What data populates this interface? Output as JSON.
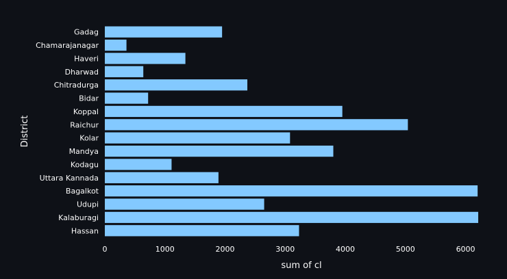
{
  "colors": {
    "background": "#0e1117",
    "bar": "#83c9ff",
    "text": "#fafafa",
    "tick": "#ffffff",
    "gridline": "#31333f"
  },
  "chart_data": {
    "type": "bar",
    "orientation": "horizontal",
    "categories": [
      "Gadag",
      "Chamarajanagar",
      "Haveri",
      "Dharwad",
      "Chitradurga",
      "Bidar",
      "Koppal",
      "Raichur",
      "Kolar",
      "Mandya",
      "Kodagu",
      "Uttara Kannada",
      "Bagalkot",
      "Udupi",
      "Kalaburagi",
      "Hassan"
    ],
    "values": [
      1950,
      360,
      1340,
      640,
      2370,
      720,
      3950,
      5040,
      3080,
      3800,
      1110,
      1890,
      6200,
      2650,
      6210,
      3230
    ],
    "xlabel": "sum of cl",
    "ylabel": "District",
    "xlim": [
      0,
      6210
    ],
    "xticks": [
      0,
      1000,
      2000,
      3000,
      4000,
      5000,
      6000
    ],
    "grid": false,
    "legend": "none"
  }
}
